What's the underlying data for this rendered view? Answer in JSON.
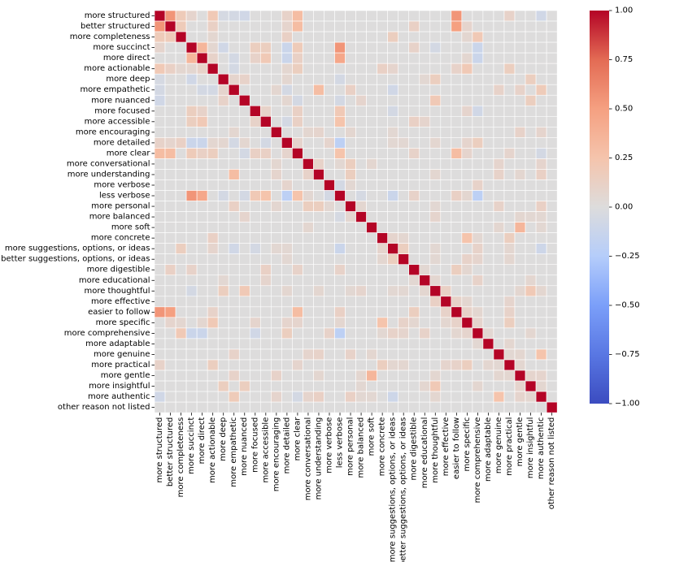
{
  "chart_data": {
    "type": "heatmap",
    "title": "",
    "xlabel": "",
    "ylabel": "",
    "labels": [
      "more structured",
      "better structured",
      "more completeness",
      "more succinct",
      "more direct",
      "more actionable",
      "more deep",
      "more empathetic",
      "more nuanced",
      "more focused",
      "more accessible",
      "more encouraging",
      "more detailed",
      "more clear",
      "more conversational",
      "more understanding",
      "more verbose",
      "less verbose",
      "more personal",
      "more balanced",
      "more soft",
      "more concrete",
      "more suggestions, options, or ideas",
      "better suggestions, options, or ideas",
      "more digestible",
      "more educational",
      "more thoughtful",
      "more effective",
      "easier to follow",
      "more specific",
      "more comprehensive",
      "more adaptable",
      "more genuine",
      "more practical",
      "more gentle",
      "more insightful",
      "more authentic",
      "other reason not listed"
    ],
    "colorbar": {
      "vmin": -1.0,
      "vmax": 1.0,
      "ticks": [
        1.0,
        0.75,
        0.5,
        0.25,
        0.0,
        -0.25,
        -0.5,
        -0.75,
        -1.0
      ],
      "tick_labels": [
        "1.00",
        "0.75",
        "0.50",
        "0.25",
        "0.00",
        "−0.25",
        "−0.50",
        "−0.75",
        "−1.00"
      ],
      "colormap": "coolwarm"
    },
    "diagonal": 1.0,
    "correlations": [
      [
        0,
        1,
        0.55
      ],
      [
        0,
        2,
        0.18
      ],
      [
        0,
        5,
        0.2
      ],
      [
        0,
        12,
        0.1
      ],
      [
        0,
        13,
        0.3
      ],
      [
        0,
        28,
        0.55
      ],
      [
        0,
        8,
        -0.08
      ],
      [
        0,
        7,
        -0.06
      ],
      [
        0,
        3,
        0.08
      ],
      [
        0,
        6,
        -0.05
      ],
      [
        0,
        33,
        0.1
      ],
      [
        0,
        36,
        -0.08
      ],
      [
        1,
        2,
        0.18
      ],
      [
        1,
        5,
        0.12
      ],
      [
        1,
        13,
        0.3
      ],
      [
        1,
        28,
        0.5
      ],
      [
        1,
        12,
        0.08
      ],
      [
        1,
        24,
        0.12
      ],
      [
        1,
        29,
        0.08
      ],
      [
        2,
        30,
        0.2
      ],
      [
        2,
        22,
        0.15
      ],
      [
        2,
        12,
        0.12
      ],
      [
        2,
        5,
        0.06
      ],
      [
        2,
        29,
        0.06
      ],
      [
        3,
        4,
        0.35
      ],
      [
        3,
        17,
        0.55
      ],
      [
        3,
        13,
        0.18
      ],
      [
        3,
        9,
        0.15
      ],
      [
        3,
        10,
        0.15
      ],
      [
        3,
        12,
        -0.12
      ],
      [
        3,
        30,
        -0.12
      ],
      [
        3,
        6,
        -0.08
      ],
      [
        3,
        26,
        -0.06
      ],
      [
        3,
        24,
        0.1
      ],
      [
        3,
        5,
        0.06
      ],
      [
        4,
        17,
        0.45
      ],
      [
        4,
        10,
        0.2
      ],
      [
        4,
        9,
        0.1
      ],
      [
        4,
        13,
        0.12
      ],
      [
        4,
        5,
        0.1
      ],
      [
        4,
        12,
        -0.12
      ],
      [
        4,
        30,
        -0.12
      ],
      [
        4,
        7,
        -0.06
      ],
      [
        4,
        29,
        0.06
      ],
      [
        5,
        13,
        0.15
      ],
      [
        5,
        29,
        0.2
      ],
      [
        5,
        33,
        0.15
      ],
      [
        5,
        21,
        0.12
      ],
      [
        5,
        22,
        0.08
      ],
      [
        5,
        28,
        0.1
      ],
      [
        5,
        12,
        0.06
      ],
      [
        5,
        7,
        -0.06
      ],
      [
        6,
        26,
        0.15
      ],
      [
        6,
        35,
        0.15
      ],
      [
        6,
        7,
        0.08
      ],
      [
        6,
        8,
        0.1
      ],
      [
        6,
        12,
        0.06
      ],
      [
        6,
        25,
        0.05
      ],
      [
        6,
        17,
        -0.06
      ],
      [
        7,
        15,
        0.3
      ],
      [
        7,
        18,
        0.12
      ],
      [
        7,
        34,
        0.1
      ],
      [
        7,
        36,
        0.18
      ],
      [
        7,
        32,
        0.1
      ],
      [
        7,
        22,
        -0.08
      ],
      [
        7,
        12,
        -0.06
      ],
      [
        7,
        11,
        0.06
      ],
      [
        8,
        26,
        0.2
      ],
      [
        8,
        35,
        0.15
      ],
      [
        8,
        19,
        0.08
      ],
      [
        8,
        12,
        0.06
      ],
      [
        8,
        17,
        -0.06
      ],
      [
        8,
        13,
        -0.06
      ],
      [
        9,
        17,
        0.2
      ],
      [
        9,
        13,
        0.12
      ],
      [
        9,
        10,
        0.1
      ],
      [
        9,
        29,
        0.08
      ],
      [
        9,
        30,
        -0.08
      ],
      [
        9,
        22,
        -0.06
      ],
      [
        10,
        13,
        0.12
      ],
      [
        10,
        17,
        0.25
      ],
      [
        10,
        24,
        0.12
      ],
      [
        10,
        25,
        0.08
      ],
      [
        10,
        12,
        -0.06
      ],
      [
        11,
        15,
        0.08
      ],
      [
        11,
        18,
        0.06
      ],
      [
        11,
        36,
        0.08
      ],
      [
        11,
        34,
        0.1
      ],
      [
        11,
        14,
        0.06
      ],
      [
        11,
        22,
        0.05
      ],
      [
        12,
        13,
        0.08
      ],
      [
        12,
        17,
        -0.2
      ],
      [
        12,
        30,
        0.15
      ],
      [
        12,
        26,
        0.06
      ],
      [
        12,
        29,
        0.08
      ],
      [
        12,
        23,
        0.05
      ],
      [
        12,
        22,
        0.05
      ],
      [
        13,
        17,
        0.25
      ],
      [
        13,
        28,
        0.3
      ],
      [
        13,
        24,
        0.1
      ],
      [
        13,
        29,
        0.08
      ],
      [
        13,
        33,
        0.08
      ],
      [
        13,
        36,
        -0.06
      ],
      [
        14,
        15,
        0.1
      ],
      [
        14,
        18,
        0.15
      ],
      [
        14,
        32,
        0.08
      ],
      [
        14,
        36,
        0.08
      ],
      [
        14,
        20,
        0.06
      ],
      [
        14,
        17,
        0.05
      ],
      [
        15,
        18,
        0.15
      ],
      [
        15,
        36,
        0.12
      ],
      [
        15,
        32,
        0.1
      ],
      [
        15,
        26,
        0.06
      ],
      [
        15,
        34,
        0.06
      ],
      [
        16,
        30,
        0.1
      ],
      [
        16,
        12,
        0.08
      ],
      [
        16,
        18,
        0.05
      ],
      [
        16,
        17,
        -0.06
      ],
      [
        17,
        28,
        0.12
      ],
      [
        17,
        30,
        -0.2
      ],
      [
        17,
        24,
        0.1
      ],
      [
        17,
        22,
        -0.12
      ],
      [
        17,
        19,
        -0.05
      ],
      [
        17,
        29,
        0.06
      ],
      [
        18,
        36,
        0.12
      ],
      [
        18,
        32,
        0.1
      ],
      [
        18,
        19,
        0.06
      ],
      [
        18,
        26,
        0.05
      ],
      [
        19,
        26,
        0.08
      ],
      [
        19,
        35,
        0.05
      ],
      [
        19,
        34,
        0.06
      ],
      [
        19,
        36,
        0.05
      ],
      [
        20,
        34,
        0.35
      ],
      [
        20,
        32,
        0.06
      ],
      [
        20,
        36,
        0.05
      ],
      [
        21,
        29,
        0.25
      ],
      [
        21,
        33,
        0.15
      ],
      [
        21,
        22,
        0.08
      ],
      [
        21,
        23,
        0.06
      ],
      [
        21,
        30,
        0.05
      ],
      [
        22,
        23,
        0.15
      ],
      [
        22,
        30,
        0.1
      ],
      [
        22,
        36,
        -0.1
      ],
      [
        22,
        26,
        0.05
      ],
      [
        22,
        33,
        0.06
      ],
      [
        23,
        29,
        0.1
      ],
      [
        23,
        30,
        0.08
      ],
      [
        23,
        33,
        0.06
      ],
      [
        23,
        26,
        0.05
      ],
      [
        24,
        28,
        0.15
      ],
      [
        24,
        29,
        0.06
      ],
      [
        24,
        25,
        0.05
      ],
      [
        25,
        30,
        0.1
      ],
      [
        25,
        35,
        0.06
      ],
      [
        25,
        26,
        0.06
      ],
      [
        26,
        35,
        0.2
      ],
      [
        26,
        27,
        0.12
      ],
      [
        26,
        36,
        0.06
      ],
      [
        26,
        34,
        0.06
      ],
      [
        27,
        28,
        0.1
      ],
      [
        27,
        33,
        0.08
      ],
      [
        27,
        29,
        0.06
      ],
      [
        28,
        29,
        0.1
      ],
      [
        28,
        33,
        0.1
      ],
      [
        28,
        30,
        0.06
      ],
      [
        29,
        33,
        0.15
      ],
      [
        29,
        30,
        0.08
      ],
      [
        30,
        35,
        0.06
      ],
      [
        30,
        31,
        0.05
      ],
      [
        31,
        33,
        0.06
      ],
      [
        32,
        36,
        0.25
      ],
      [
        32,
        34,
        0.06
      ],
      [
        32,
        33,
        0.05
      ],
      [
        33,
        34,
        0.06
      ],
      [
        34,
        35,
        0.08
      ],
      [
        34,
        36,
        0.08
      ],
      [
        35,
        36,
        0.06
      ]
    ]
  }
}
